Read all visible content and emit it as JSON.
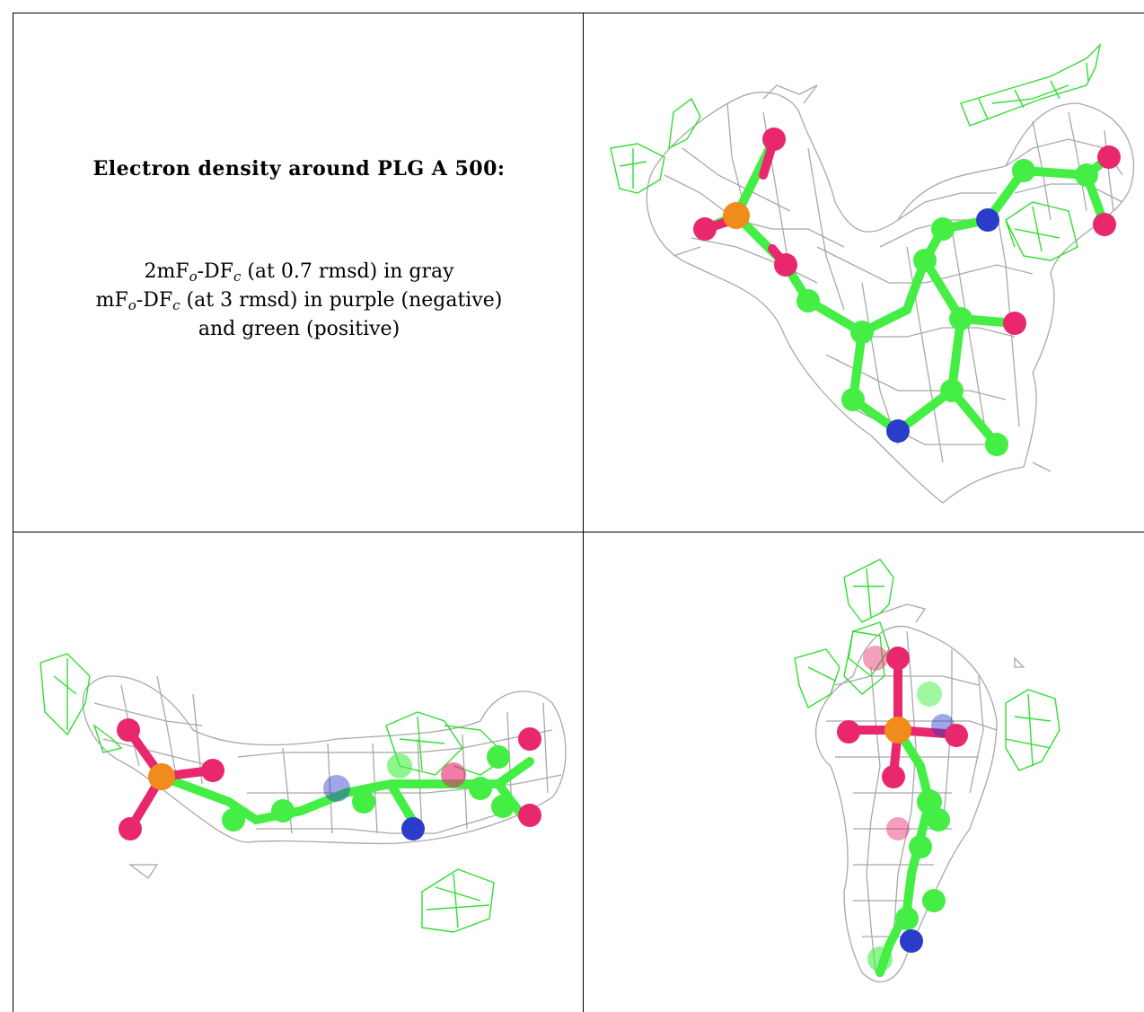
{
  "caption": {
    "title": "Electron density around PLG A 500:",
    "line1": {
      "pre": "2mF",
      "sub1": "o",
      "mid": "-DF",
      "sub2": "c",
      "post": " (at 0.7 rmsd) in gray"
    },
    "line2": {
      "pre": "mF",
      "sub1": "o",
      "mid": "-DF",
      "sub2": "c",
      "post": " (at 3 rmsd) in purple (negative)"
    },
    "line3": "and green (positive)"
  },
  "colors": {
    "mesh_2fofc": "#a8a8a8",
    "mesh_positive": "#33dd33",
    "carbon": "#44ee44",
    "oxygen": "#e8276e",
    "nitrogen": "#2a3cc8",
    "phosphorus": "#f08c1c"
  },
  "views": [
    "view-front",
    "view-side",
    "view-end"
  ]
}
